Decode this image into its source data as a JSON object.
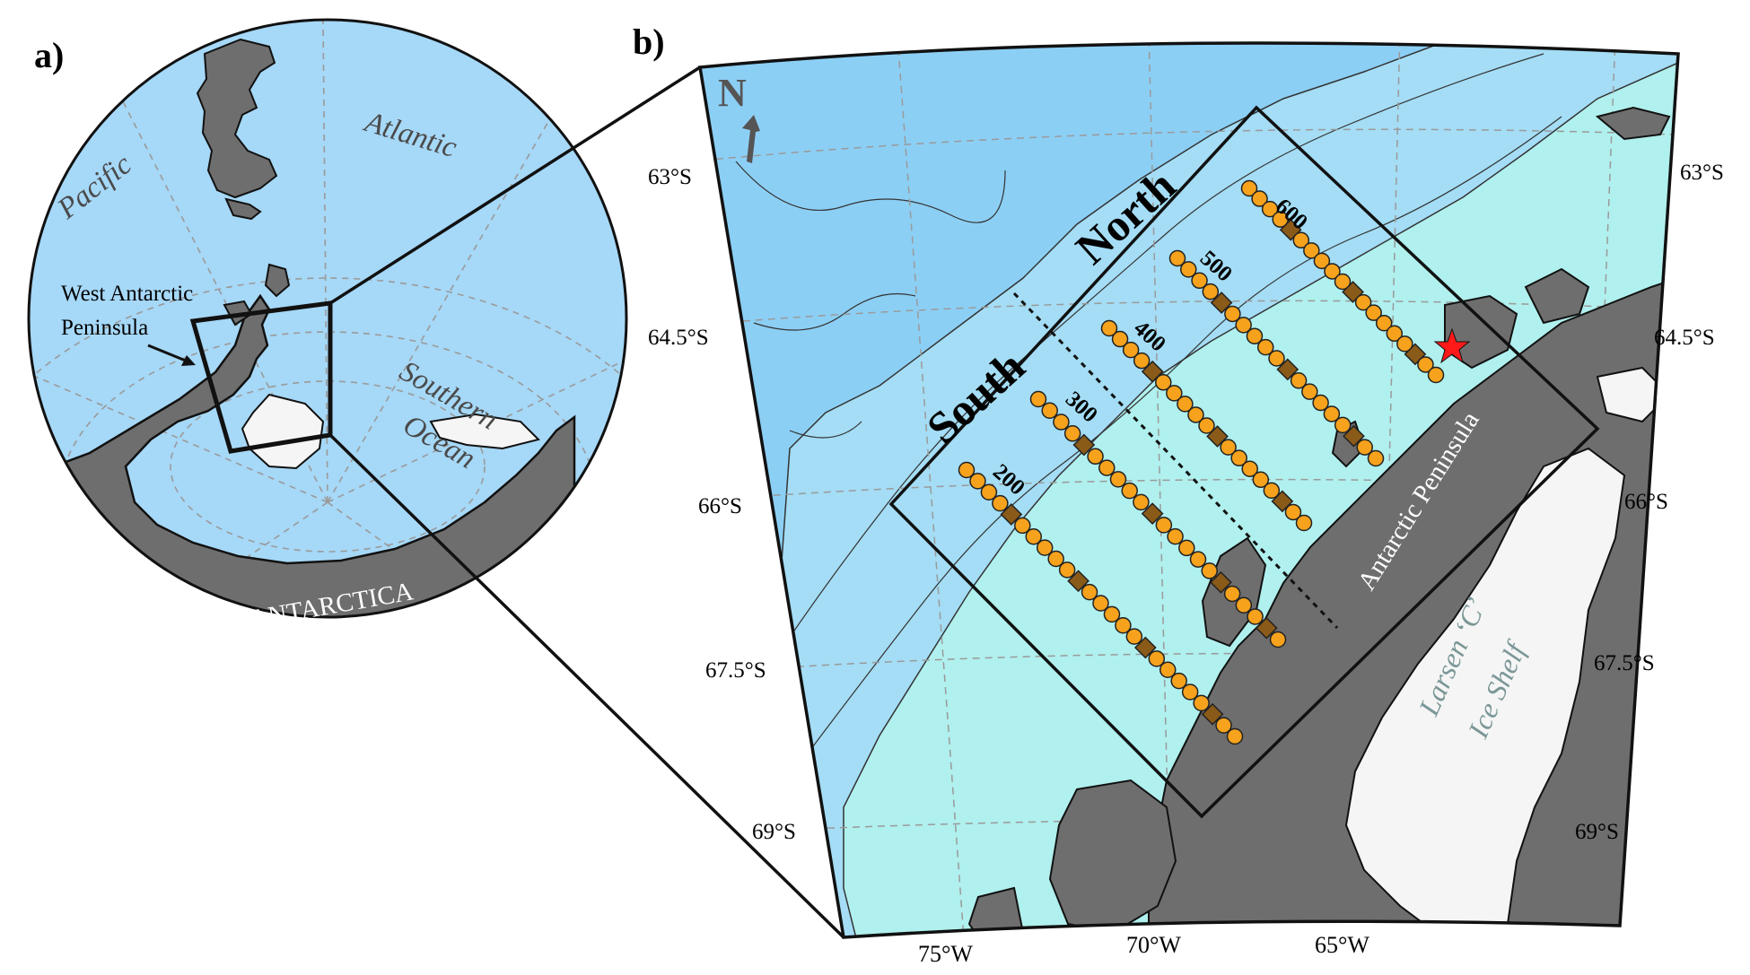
{
  "panels": {
    "a": {
      "label": "a)",
      "oceans": {
        "pacific": "Pacific",
        "atlantic": "Atlantic",
        "southern_line1": "Southern",
        "southern_line2": "Ocean"
      },
      "wap_line1": "West Antarctic",
      "wap_line2": "Peninsula",
      "continent": "ANTARCTICA"
    },
    "b": {
      "label": "b)",
      "north_arrow": "N",
      "lat_labels": [
        "63°S",
        "64.5°S",
        "66°S",
        "67.5°S",
        "69°S"
      ],
      "lon_labels": [
        "75°W",
        "70°W",
        "65°W"
      ],
      "regions": {
        "north": "North",
        "south": "South"
      },
      "lines": [
        "600",
        "500",
        "400",
        "300",
        "200"
      ],
      "peninsula_label": "Antarctic Peninsula",
      "ice_shelf_line1": "Larsen ‘C’",
      "ice_shelf_line2": "Ice Shelf"
    }
  },
  "colors": {
    "ocean_deep": "#8ccff5",
    "ocean_mid": "#a4ddf5",
    "ocean_shelf": "#b0f0ee",
    "globe_ocean": "#a6d8f7",
    "land": "#6e6e6e",
    "ice": "#f5f5f5",
    "station": "#f6a21d",
    "station_square": "#8a5a18",
    "star": "#ff1a1a"
  }
}
